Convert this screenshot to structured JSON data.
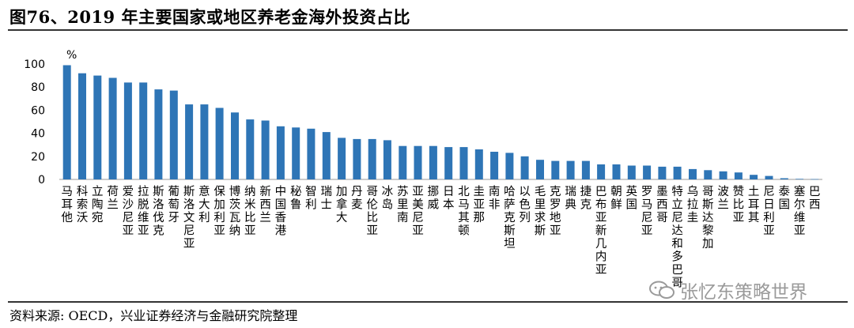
{
  "title": "图76、2019 年主要国家或地区养老金海外投资占比",
  "source": "资料来源: OECD，兴业证券经济与金融研究院整理",
  "watermark": "张忆东策略世界",
  "colors": {
    "bar": "#2E75B6",
    "rule": "#333333",
    "watermark": "#9a9a9a"
  },
  "chart_data": {
    "type": "bar",
    "title": "图76、2019 年主要国家或地区养老金海外投资占比",
    "ylabel": "%",
    "xlabel": "",
    "ylim": [
      0,
      100
    ],
    "yticks": [
      0,
      20,
      40,
      60,
      80,
      100
    ],
    "grid": false,
    "categories": [
      "马耳他",
      "科索沃",
      "立陶宛",
      "荷兰",
      "爱沙尼亚",
      "拉脱维亚",
      "斯洛伐克",
      "葡萄牙",
      "斯洛文尼亚",
      "意大利",
      "保加利亚",
      "博茨瓦纳",
      "纳米比亚",
      "新西兰",
      "中国香港",
      "秘鲁",
      "智利",
      "瑞士",
      "加拿大",
      "丹麦",
      "哥伦比亚",
      "冰岛",
      "苏里南",
      "亚美尼亚",
      "挪威",
      "日本",
      "北马其顿",
      "圭亚那",
      "南非",
      "哈萨克斯坦",
      "以色列",
      "毛里求斯",
      "克罗地亚",
      "瑞典",
      "捷克",
      "巴布亚新几内亚",
      "朝鲜",
      "英国",
      "罗马尼亚",
      "墨西哥",
      "特立尼达和多巴哥",
      "乌拉圭",
      "哥斯达黎加",
      "波兰",
      "赞比亚",
      "土耳其",
      "尼日利亚",
      "泰国",
      "塞尔维亚",
      "巴西"
    ],
    "values": [
      99,
      92,
      90,
      88,
      84,
      84,
      78,
      77,
      65,
      65,
      62,
      58,
      52,
      51,
      46,
      45,
      44,
      41,
      36,
      35,
      35,
      34,
      29,
      29,
      29,
      28,
      28,
      26,
      24,
      23,
      20,
      17,
      16,
      16,
      16,
      13,
      13,
      12,
      12,
      11,
      11,
      9,
      8,
      7,
      6,
      4,
      3,
      1,
      0.5,
      0.3
    ]
  }
}
